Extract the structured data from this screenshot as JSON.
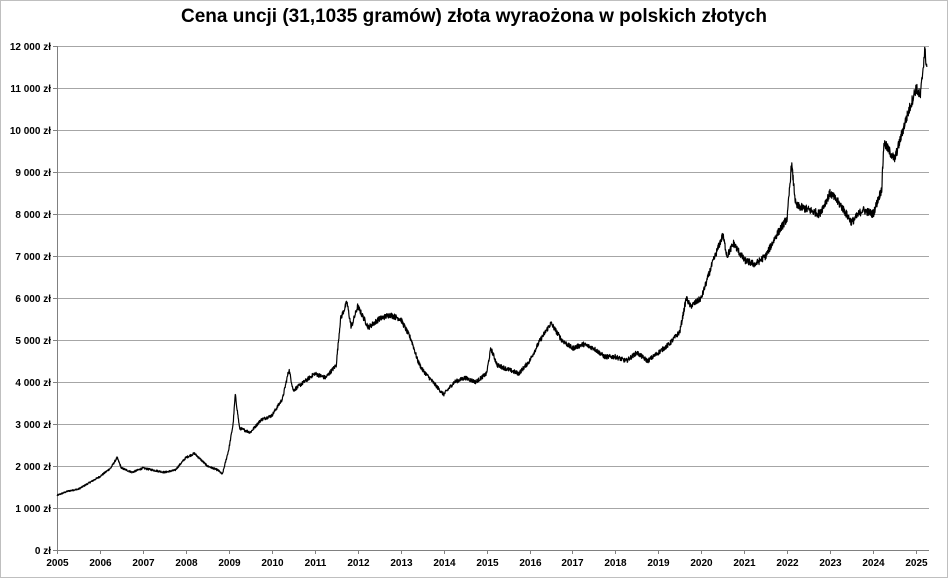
{
  "chart_data": {
    "type": "line",
    "title": "Cena uncji (31,1035 gramów) złota wyraożona w polskich złotych",
    "xlabel": "",
    "ylabel": "",
    "xlim": [
      2005,
      2025.3
    ],
    "ylim": [
      0,
      12000
    ],
    "grid": true,
    "legend": "none",
    "line_color": "#000000",
    "grid_color": "#a6a6a6",
    "y_ticks": [
      0,
      1000,
      2000,
      3000,
      4000,
      5000,
      6000,
      7000,
      8000,
      9000,
      10000,
      11000,
      12000
    ],
    "y_tick_labels": [
      "0 zł",
      "1 000 zł",
      "2 000 zł",
      "3 000 zł",
      "4 000 zł",
      "5 000 zł",
      "6 000 zł",
      "7 000 zł",
      "8 000 zł",
      "9 000 zł",
      "10 000 zł",
      "11 000 zł",
      "12 000 zł"
    ],
    "x_ticks": [
      2005,
      2006,
      2007,
      2008,
      2009,
      2010,
      2011,
      2012,
      2013,
      2014,
      2015,
      2016,
      2017,
      2018,
      2019,
      2020,
      2021,
      2022,
      2023,
      2024,
      2025
    ],
    "x_tick_labels": [
      "2005",
      "2006",
      "2007",
      "2008",
      "2009",
      "2010",
      "2011",
      "2012",
      "2013",
      "2014",
      "2015",
      "2016",
      "2017",
      "2018",
      "2019",
      "2020",
      "2021",
      "2022",
      "2023",
      "2024",
      "2025"
    ],
    "series": [
      {
        "x": [
          2005.0,
          2005.25,
          2005.5,
          2005.75,
          2006.0,
          2006.25,
          2006.4,
          2006.5,
          2006.75,
          2007.0,
          2007.25,
          2007.5,
          2007.75,
          2008.0,
          2008.2,
          2008.5,
          2008.75,
          2008.85,
          2009.0,
          2009.1,
          2009.15,
          2009.25,
          2009.5,
          2009.75,
          2010.0,
          2010.25,
          2010.4,
          2010.5,
          2010.75,
          2011.0,
          2011.25,
          2011.5,
          2011.6,
          2011.75,
          2011.85,
          2012.0,
          2012.25,
          2012.5,
          2012.75,
          2013.0,
          2013.25,
          2013.4,
          2013.5,
          2013.75,
          2014.0,
          2014.25,
          2014.5,
          2014.75,
          2015.0,
          2015.1,
          2015.25,
          2015.5,
          2015.75,
          2016.0,
          2016.25,
          2016.5,
          2016.75,
          2017.0,
          2017.25,
          2017.5,
          2017.75,
          2018.0,
          2018.25,
          2018.5,
          2018.75,
          2019.0,
          2019.25,
          2019.5,
          2019.65,
          2019.75,
          2020.0,
          2020.25,
          2020.5,
          2020.6,
          2020.75,
          2021.0,
          2021.25,
          2021.5,
          2021.75,
          2022.0,
          2022.1,
          2022.2,
          2022.5,
          2022.75,
          2023.0,
          2023.25,
          2023.5,
          2023.75,
          2024.0,
          2024.2,
          2024.25,
          2024.5,
          2024.75,
          2025.0,
          2025.1,
          2025.2,
          2025.25
        ],
        "y": [
          1300,
          1400,
          1450,
          1600,
          1750,
          1950,
          2200,
          1950,
          1850,
          1950,
          1900,
          1850,
          1900,
          2200,
          2300,
          2000,
          1900,
          1800,
          2400,
          3000,
          3700,
          2900,
          2800,
          3100,
          3200,
          3600,
          4300,
          3800,
          4000,
          4200,
          4100,
          4400,
          5500,
          5900,
          5300,
          5800,
          5300,
          5500,
          5600,
          5500,
          5000,
          4500,
          4300,
          4000,
          3700,
          4000,
          4100,
          4000,
          4200,
          4800,
          4400,
          4300,
          4200,
          4500,
          5000,
          5400,
          5000,
          4800,
          4900,
          4800,
          4600,
          4600,
          4500,
          4700,
          4500,
          4700,
          4900,
          5200,
          6000,
          5800,
          6000,
          6800,
          7500,
          7000,
          7300,
          6900,
          6800,
          7000,
          7500,
          7900,
          9200,
          8200,
          8100,
          8000,
          8500,
          8200,
          7800,
          8100,
          8000,
          8600,
          9700,
          9300,
          10200,
          11000,
          10800,
          11900,
          11500
        ]
      }
    ]
  }
}
